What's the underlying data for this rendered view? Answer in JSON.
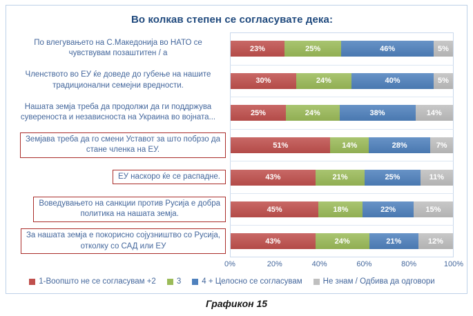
{
  "title": "Во колкав степен се согласувате дека:",
  "caption": "Графикон 15",
  "colors": {
    "agree_low": "#C0504D",
    "neutral": "#9BBB59",
    "agree_high": "#4F81BD",
    "dont_know": "#BFBFBF",
    "title_text": "#1F497D",
    "axis_text": "#44679C",
    "highlight_box_border": "#A92B28",
    "card_border": "#BDD1E8"
  },
  "legend": [
    {
      "label": "1-Воопшто не се согласувам +2",
      "color": "#C0504D"
    },
    {
      "label": "3",
      "color": "#9BBB59"
    },
    {
      "label": "4 + Целосно се согласувам",
      "color": "#4F81BD"
    },
    {
      "label": "Не знам / Одбива да одговори",
      "color": "#BFBFBF"
    }
  ],
  "x_axis": {
    "ticks": [
      "0%",
      "20%",
      "40%",
      "60%",
      "80%",
      "100%"
    ],
    "min": 0,
    "max": 100
  },
  "chart_data": {
    "type": "bar",
    "orientation": "horizontal",
    "stacked_percent": true,
    "title": "Во колкав степен се согласувате дека:",
    "xlim": [
      0,
      100
    ],
    "grid": "row-separators",
    "legend_position": "bottom",
    "categories": [
      "По влегувањето на С.Македонија во НАТО се\nчувствувам позаштитен / а",
      "Членството во ЕУ ќе доведе до губење на нашите\nтрадиционални семејни вредности.",
      "Нашата земја треба да продолжи да ги поддржува\nсувереноста и независноста на Украина во војната...",
      "Земјава треба да го смени Уставот за што побрзо да\nстане членка на ЕУ.",
      "ЕУ наскоро ќе се распадне.",
      "Воведувањето на санкции против Русија е добра\nполитика на нашата земја.",
      "За нашата земја е покорисно сојузништво со Русија,\nотколку со САД или ЕУ"
    ],
    "category_boxed": [
      false,
      false,
      false,
      true,
      true,
      true,
      true
    ],
    "series": [
      {
        "name": "1-Воопшто не се согласувам +2",
        "color": "#C0504D",
        "values": [
          23,
          30,
          25,
          51,
          43,
          45,
          43
        ]
      },
      {
        "name": "3",
        "color": "#9BBB59",
        "values": [
          25,
          24,
          24,
          14,
          21,
          18,
          24
        ]
      },
      {
        "name": "4 + Целосно се согласувам",
        "color": "#4F81BD",
        "values": [
          46,
          40,
          38,
          28,
          25,
          22,
          21
        ]
      },
      {
        "name": "Не знам / Одбива да одговори",
        "color": "#BFBFBF",
        "values": [
          5,
          5,
          14,
          7,
          11,
          15,
          12
        ]
      }
    ],
    "value_label_format": "{v}%"
  }
}
